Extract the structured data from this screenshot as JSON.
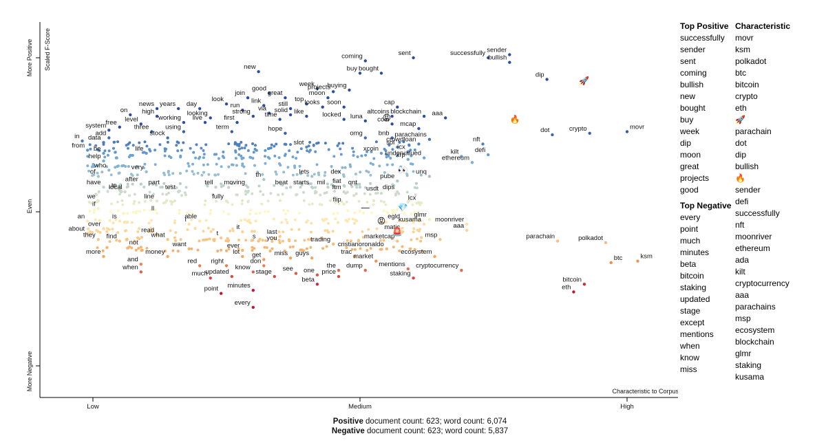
{
  "chart_data": {
    "type": "scatter",
    "y_axis_title": "Scaled F-Score",
    "y_axis_labels": [
      "More Positive",
      "Even",
      "More Negative"
    ],
    "x_axis_title": "Characteristic to Corpus",
    "x_axis_labels": [
      "Low",
      "Medium",
      "High"
    ],
    "points": [
      {
        "label": "new",
        "x": 0.31,
        "y": 0.91
      },
      {
        "label": "coming",
        "x": 0.51,
        "y": 0.98
      },
      {
        "label": "buy",
        "x": 0.5,
        "y": 0.9
      },
      {
        "label": "bought",
        "x": 0.54,
        "y": 0.9
      },
      {
        "label": "sent",
        "x": 0.6,
        "y": 1.0
      },
      {
        "label": "sender",
        "x": 0.78,
        "y": 1.02
      },
      {
        "label": "successfully",
        "x": 0.74,
        "y": 1.0
      },
      {
        "label": "bullish",
        "x": 0.78,
        "y": 0.97
      },
      {
        "label": "dip",
        "x": 0.85,
        "y": 0.86
      },
      {
        "label": "week",
        "x": 0.42,
        "y": 0.8
      },
      {
        "label": "projects",
        "x": 0.45,
        "y": 0.78
      },
      {
        "label": "buying",
        "x": 0.48,
        "y": 0.79
      },
      {
        "label": "good",
        "x": 0.33,
        "y": 0.77
      },
      {
        "label": "join",
        "x": 0.29,
        "y": 0.74
      },
      {
        "label": "great",
        "x": 0.36,
        "y": 0.74
      },
      {
        "label": "moon",
        "x": 0.44,
        "y": 0.74
      },
      {
        "label": "look",
        "x": 0.25,
        "y": 0.7
      },
      {
        "label": "link",
        "x": 0.32,
        "y": 0.69
      },
      {
        "label": "top",
        "x": 0.4,
        "y": 0.7
      },
      {
        "label": "looks",
        "x": 0.43,
        "y": 0.68
      },
      {
        "label": "soon",
        "x": 0.47,
        "y": 0.68
      },
      {
        "label": "cap",
        "x": 0.57,
        "y": 0.68
      },
      {
        "label": "news",
        "x": 0.12,
        "y": 0.67
      },
      {
        "label": "years",
        "x": 0.16,
        "y": 0.67
      },
      {
        "label": "day",
        "x": 0.2,
        "y": 0.67
      },
      {
        "label": "run",
        "x": 0.28,
        "y": 0.66
      },
      {
        "label": "still",
        "x": 0.37,
        "y": 0.67
      },
      {
        "label": "on",
        "x": 0.07,
        "y": 0.63
      },
      {
        "label": "high",
        "x": 0.12,
        "y": 0.62
      },
      {
        "label": "via",
        "x": 0.33,
        "y": 0.64
      },
      {
        "label": "solid",
        "x": 0.37,
        "y": 0.63
      },
      {
        "label": "like",
        "x": 0.4,
        "y": 0.62
      },
      {
        "label": "looking",
        "x": 0.22,
        "y": 0.61
      },
      {
        "label": "strong",
        "x": 0.3,
        "y": 0.62
      },
      {
        "label": "time",
        "x": 0.35,
        "y": 0.6
      },
      {
        "label": "blockchain",
        "x": 0.62,
        "y": 0.62
      },
      {
        "label": "altcoins",
        "x": 0.56,
        "y": 0.62
      },
      {
        "label": "aaa",
        "x": 0.66,
        "y": 0.61
      },
      {
        "label": "locked",
        "x": 0.47,
        "y": 0.6
      },
      {
        "label": "free",
        "x": 0.05,
        "y": 0.55
      },
      {
        "label": "level",
        "x": 0.09,
        "y": 0.57
      },
      {
        "label": "working",
        "x": 0.17,
        "y": 0.58
      },
      {
        "label": "live",
        "x": 0.21,
        "y": 0.58
      },
      {
        "label": "first",
        "x": 0.27,
        "y": 0.58
      },
      {
        "label": "luna",
        "x": 0.51,
        "y": 0.59
      },
      {
        "label": "coin",
        "x": 0.56,
        "y": 0.57
      },
      {
        "label": "system",
        "x": 0.03,
        "y": 0.53
      },
      {
        "label": "three",
        "x": 0.11,
        "y": 0.52
      },
      {
        "label": "using",
        "x": 0.17,
        "y": 0.52
      },
      {
        "label": "term",
        "x": 0.26,
        "y": 0.52
      },
      {
        "label": "hope",
        "x": 0.36,
        "y": 0.51
      },
      {
        "label": "mcap",
        "x": 0.61,
        "y": 0.54
      },
      {
        "label": "dot",
        "x": 0.86,
        "y": 0.5
      },
      {
        "label": "crypto",
        "x": 0.93,
        "y": 0.51
      },
      {
        "label": "movr",
        "x": 1.0,
        "y": 0.52
      },
      {
        "label": "add",
        "x": 0.03,
        "y": 0.48
      },
      {
        "label": "stock",
        "x": 0.14,
        "y": 0.48
      },
      {
        "label": "omg",
        "x": 0.51,
        "y": 0.48
      },
      {
        "label": "bnb",
        "x": 0.56,
        "y": 0.48
      },
      {
        "label": "parachains",
        "x": 0.63,
        "y": 0.47
      },
      {
        "label": "in",
        "x": -0.02,
        "y": 0.46
      },
      {
        "label": "data",
        "x": 0.02,
        "y": 0.45
      },
      {
        "label": "crowdloan",
        "x": 0.61,
        "y": 0.44
      },
      {
        "label": "nft",
        "x": 0.73,
        "y": 0.44
      },
      {
        "label": "slot",
        "x": 0.4,
        "y": 0.42
      },
      {
        "label": "sol",
        "x": 0.57,
        "y": 0.42
      },
      {
        "label": "from",
        "x": -0.01,
        "y": 0.4
      },
      {
        "label": "be",
        "x": 0.02,
        "y": 0.38
      },
      {
        "label": "life",
        "x": 0.1,
        "y": 0.38
      },
      {
        "label": "icx",
        "x": 0.59,
        "y": 0.39
      },
      {
        "label": "xcoin",
        "x": 0.54,
        "y": 0.38
      },
      {
        "label": "defi",
        "x": 0.74,
        "y": 0.37
      },
      {
        "label": "kilt",
        "x": 0.69,
        "y": 0.36
      },
      {
        "label": "undervalued",
        "x": 0.62,
        "y": 0.35
      },
      {
        "label": "xrp",
        "x": 0.59,
        "y": 0.34
      },
      {
        "label": "ethereum",
        "x": 0.71,
        "y": 0.32
      },
      {
        "label": "help",
        "x": 0.02,
        "y": 0.33
      },
      {
        "label": "who",
        "x": 0.03,
        "y": 0.27
      },
      {
        "label": "very",
        "x": 0.1,
        "y": 0.26
      },
      {
        "label": "lets",
        "x": 0.41,
        "y": 0.23
      },
      {
        "label": "dex",
        "x": 0.47,
        "y": 0.23
      },
      {
        "label": "unq",
        "x": 0.63,
        "y": 0.23
      },
      {
        "label": "of",
        "x": 0.01,
        "y": 0.23
      },
      {
        "label": "th",
        "x": 0.32,
        "y": 0.21
      },
      {
        "label": "pube",
        "x": 0.57,
        "y": 0.2
      },
      {
        "label": "after",
        "x": 0.09,
        "y": 0.18
      },
      {
        "label": "part",
        "x": 0.13,
        "y": 0.16
      },
      {
        "label": "fiat",
        "x": 0.47,
        "y": 0.17
      },
      {
        "label": "have",
        "x": 0.02,
        "y": 0.16
      },
      {
        "label": "tell",
        "x": 0.23,
        "y": 0.16
      },
      {
        "label": "moving",
        "x": 0.29,
        "y": 0.16
      },
      {
        "label": "beat",
        "x": 0.37,
        "y": 0.16
      },
      {
        "label": "starts",
        "x": 0.41,
        "y": 0.16
      },
      {
        "label": "mil",
        "x": 0.44,
        "y": 0.16
      },
      {
        "label": "qnt",
        "x": 0.5,
        "y": 0.16
      },
      {
        "label": "to",
        "x": 0.05,
        "y": 0.14
      },
      {
        "label": "local",
        "x": 0.06,
        "y": 0.13
      },
      {
        "label": "test",
        "x": 0.16,
        "y": 0.13
      },
      {
        "label": "ftm",
        "x": 0.47,
        "y": 0.13
      },
      {
        "label": "usdt",
        "x": 0.54,
        "y": 0.12
      },
      {
        "label": "dips",
        "x": 0.57,
        "y": 0.13
      },
      {
        "label": "we",
        "x": 0.01,
        "y": 0.07
      },
      {
        "label": "line",
        "x": 0.12,
        "y": 0.07
      },
      {
        "label": "fully",
        "x": 0.25,
        "y": 0.07
      },
      {
        "label": "flip",
        "x": 0.47,
        "y": 0.05
      },
      {
        "label": "lcx",
        "x": 0.61,
        "y": 0.06
      },
      {
        "label": "if",
        "x": 0.01,
        "y": 0.02
      },
      {
        "label": "ll",
        "x": 0.12,
        "y": -0.01
      },
      {
        "label": "glmr",
        "x": 0.63,
        "y": -0.05
      },
      {
        "label": "an",
        "x": -0.01,
        "y": -0.06
      },
      {
        "label": "is",
        "x": 0.05,
        "y": -0.06
      },
      {
        "label": "able",
        "x": 0.2,
        "y": -0.06
      },
      {
        "label": "i",
        "x": 0.18,
        "y": -0.08
      },
      {
        "label": "egld",
        "x": 0.58,
        "y": -0.06
      },
      {
        "label": "kusama",
        "x": 0.62,
        "y": -0.08
      },
      {
        "label": "moonriver",
        "x": 0.7,
        "y": -0.08
      },
      {
        "label": "over",
        "x": 0.02,
        "y": -0.11
      },
      {
        "label": "about",
        "x": -0.01,
        "y": -0.14
      },
      {
        "label": "read",
        "x": 0.12,
        "y": -0.15
      },
      {
        "label": "it",
        "x": 0.28,
        "y": -0.13
      },
      {
        "label": "matic",
        "x": 0.58,
        "y": -0.13
      },
      {
        "label": "aaa",
        "x": 0.7,
        "y": -0.12
      },
      {
        "label": "last",
        "x": 0.35,
        "y": -0.16
      },
      {
        "label": "marketcap",
        "x": 0.57,
        "y": -0.19
      },
      {
        "label": "msp",
        "x": 0.65,
        "y": -0.18
      },
      {
        "label": "they",
        "x": 0.01,
        "y": -0.18
      },
      {
        "label": "find",
        "x": 0.05,
        "y": -0.19
      },
      {
        "label": "what",
        "x": 0.14,
        "y": -0.18
      },
      {
        "label": "t",
        "x": 0.24,
        "y": -0.17
      },
      {
        "label": "s",
        "x": 0.31,
        "y": -0.19
      },
      {
        "label": "you",
        "x": 0.35,
        "y": -0.2
      },
      {
        "label": "trading",
        "x": 0.45,
        "y": -0.21
      },
      {
        "label": "parachain",
        "x": 0.87,
        "y": -0.19
      },
      {
        "label": "polkadot",
        "x": 0.96,
        "y": -0.2
      },
      {
        "label": "not",
        "x": 0.09,
        "y": -0.23
      },
      {
        "label": "want",
        "x": 0.18,
        "y": -0.24
      },
      {
        "label": "ever",
        "x": 0.28,
        "y": -0.25
      },
      {
        "label": "cristianoronaldo",
        "x": 0.55,
        "y": -0.24
      },
      {
        "label": "more",
        "x": 0.02,
        "y": -0.29
      },
      {
        "label": "money",
        "x": 0.14,
        "y": -0.29
      },
      {
        "label": "lot",
        "x": 0.28,
        "y": -0.29
      },
      {
        "label": "guys",
        "x": 0.41,
        "y": -0.3
      },
      {
        "label": "trac",
        "x": 0.49,
        "y": -0.29
      },
      {
        "label": "ecosystem",
        "x": 0.64,
        "y": -0.29
      },
      {
        "label": "miss",
        "x": 0.37,
        "y": -0.3
      },
      {
        "label": "get",
        "x": 0.32,
        "y": -0.31
      },
      {
        "label": "market",
        "x": 0.53,
        "y": -0.32
      },
      {
        "label": "btc",
        "x": 0.97,
        "y": -0.33
      },
      {
        "label": "ksm",
        "x": 1.02,
        "y": -0.32
      },
      {
        "label": "and",
        "x": 0.09,
        "y": -0.34
      },
      {
        "label": "red",
        "x": 0.2,
        "y": -0.35
      },
      {
        "label": "right",
        "x": 0.25,
        "y": -0.35
      },
      {
        "label": "don",
        "x": 0.32,
        "y": -0.35
      },
      {
        "label": "know",
        "x": 0.3,
        "y": -0.39
      },
      {
        "label": "the",
        "x": 0.46,
        "y": -0.38
      },
      {
        "label": "dump",
        "x": 0.51,
        "y": -0.38
      },
      {
        "label": "mentions",
        "x": 0.59,
        "y": -0.37
      },
      {
        "label": "cryptocurrency",
        "x": 0.69,
        "y": -0.38
      },
      {
        "label": "when",
        "x": 0.09,
        "y": -0.39
      },
      {
        "label": "see",
        "x": 0.38,
        "y": -0.4
      },
      {
        "label": "one",
        "x": 0.42,
        "y": -0.41
      },
      {
        "label": "updated",
        "x": 0.26,
        "y": -0.42
      },
      {
        "label": "stage",
        "x": 0.34,
        "y": -0.42
      },
      {
        "label": "price",
        "x": 0.46,
        "y": -0.42
      },
      {
        "label": "much",
        "x": 0.22,
        "y": -0.43
      },
      {
        "label": "staking",
        "x": 0.6,
        "y": -0.43
      },
      {
        "label": "beta",
        "x": 0.42,
        "y": -0.47
      },
      {
        "label": "bitcoin",
        "x": 0.92,
        "y": -0.47
      },
      {
        "label": "minutes",
        "x": 0.3,
        "y": -0.51
      },
      {
        "label": "eth",
        "x": 0.9,
        "y": -0.52
      },
      {
        "label": "point",
        "x": 0.24,
        "y": -0.53
      },
      {
        "label": "every",
        "x": 0.3,
        "y": -0.62
      }
    ],
    "emoji_points": [
      {
        "label": "😡",
        "x": 0.55,
        "y": 0.61
      },
      {
        "label": "🔥",
        "x": 0.79,
        "y": 0.6
      },
      {
        "label": "🚀",
        "x": 0.92,
        "y": 0.85
      },
      {
        "label": "👀",
        "x": 0.58,
        "y": 0.27
      },
      {
        "label": "💎",
        "x": 0.58,
        "y": 0.03
      },
      {
        "label": "😡",
        "x": 0.54,
        "y": -0.06
      },
      {
        "label": "🚨",
        "x": 0.57,
        "y": -0.13
      },
      {
        "label": "—",
        "x": 0.51,
        "y": 0.03
      }
    ],
    "top_positive": {
      "title": "Top Positive",
      "items": [
        "successfully",
        "sender",
        "sent",
        "coming",
        "bullish",
        "new",
        "bought",
        "buy",
        "week",
        "dip",
        "moon",
        "great",
        "projects",
        "good"
      ]
    },
    "top_negative": {
      "title": "Top Negative",
      "items": [
        "every",
        "point",
        "much",
        "minutes",
        "beta",
        "bitcoin",
        "staking",
        "updated",
        "stage",
        "except",
        "mentions",
        "when",
        "know",
        "miss"
      ]
    },
    "characteristic": {
      "title": "Characteristic",
      "items": [
        "movr",
        "ksm",
        "polkadot",
        "btc",
        "bitcoin",
        "crypto",
        "eth",
        "🚀",
        "parachain",
        "dot",
        "dip",
        "bullish",
        "🔥",
        "sender",
        "defi",
        "successfully",
        "nft",
        "moonriver",
        "ethereum",
        "ada",
        "kilt",
        "cryptocurrency",
        "aaa",
        "parachains",
        "msp",
        "ecosystem",
        "blockchain",
        "glmr",
        "staking",
        "kusama"
      ]
    }
  },
  "counts": {
    "positive_label": "Positive",
    "positive_text": " document count: 623; word count: 6,074",
    "negative_label": "Negative",
    "negative_text": " document count: 623; word count: 5,837"
  },
  "colors": {
    "pos_strong": "#2b4fa0",
    "pos_mid": "#6fa7d4",
    "even": "#fff7c4",
    "neg_mid": "#f4a25a",
    "neg_strong": "#c4142e"
  }
}
